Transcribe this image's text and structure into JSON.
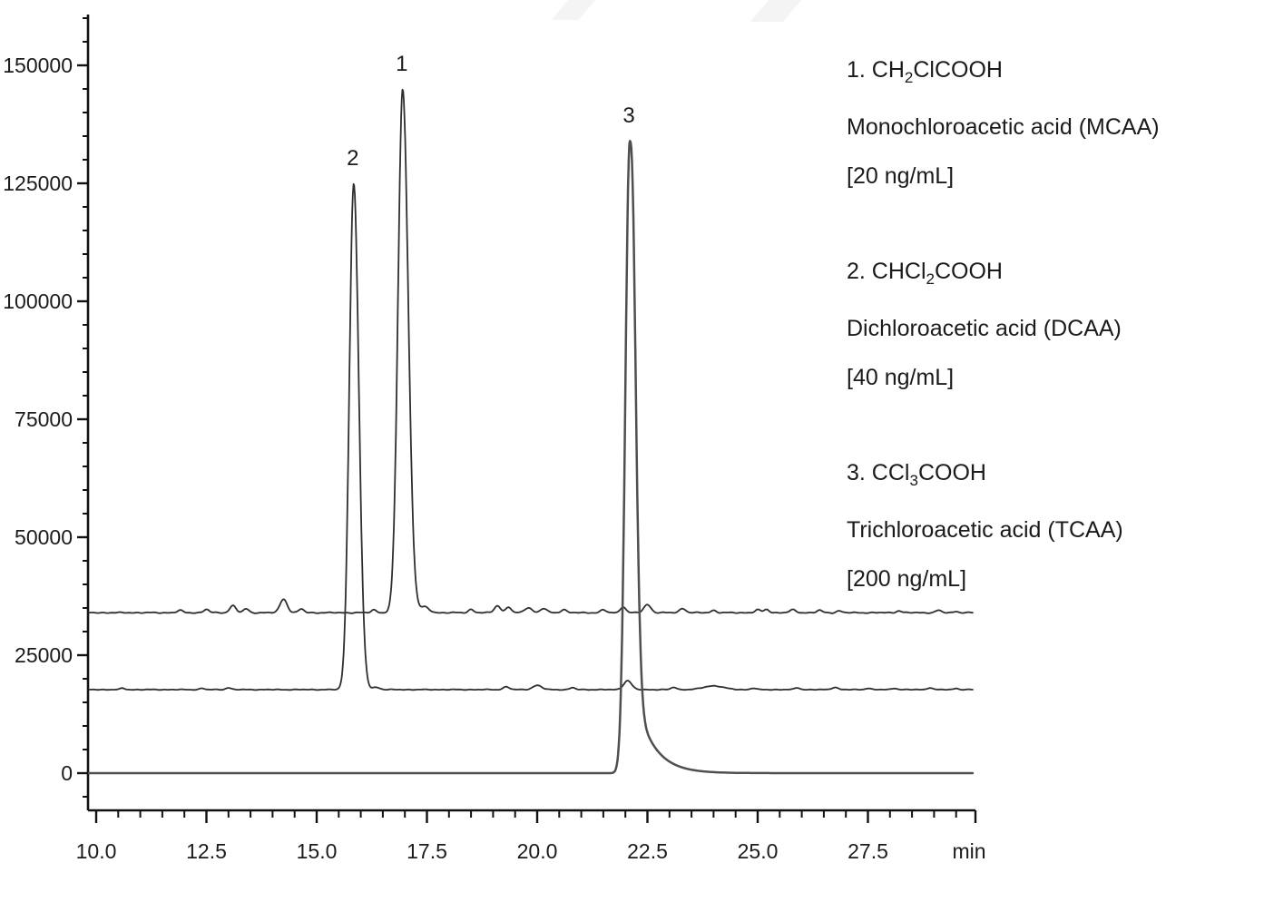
{
  "figure": {
    "background": "#ffffff",
    "watermark_color": "#f4f4f4",
    "axis_color": "#111111",
    "text_color": "#1b1b1b"
  },
  "legend": {
    "items": [
      {
        "formula_pre": "1. CH",
        "formula_sub": "2",
        "formula_post": "ClCOOH",
        "name": "Monochloroacetic acid (MCAA)",
        "concentration": "[20 ng/mL]"
      },
      {
        "formula_pre": "2. CHCl",
        "formula_sub": "2",
        "formula_post": "COOH",
        "name": "Dichloroacetic acid (DCAA)",
        "concentration": "[40 ng/mL]"
      },
      {
        "formula_pre": "3. CCl",
        "formula_sub": "3",
        "formula_post": "COOH",
        "name": "Trichloroacetic acid (TCAA)",
        "concentration": "[200 ng/mL]"
      }
    ]
  },
  "chart_data": {
    "type": "line",
    "title": "",
    "xlabel": "min",
    "ylabel": "",
    "grid": false,
    "legend_position": "right-outside",
    "x_axis": {
      "min": 10.0,
      "max": 29.9,
      "major_tick_interval": 2.5,
      "minor_tick_interval": 0.5,
      "major_ticks": [
        10.0,
        12.5,
        15.0,
        17.5,
        20.0,
        22.5,
        25.0,
        27.5
      ],
      "tick_labels": [
        "10.0",
        "12.5",
        "15.0",
        "17.5",
        "20.0",
        "22.5",
        "25.0",
        "27.5"
      ],
      "unit_label": "min"
    },
    "y_axis": {
      "min": 0,
      "max": 160000,
      "major_tick_interval": 25000,
      "minor_tick_interval": 5000,
      "major_ticks": [
        0,
        25000,
        50000,
        75000,
        100000,
        125000,
        150000
      ],
      "tick_labels": [
        "0",
        "25000",
        "50000",
        "75000",
        "100000",
        "125000",
        "150000"
      ]
    },
    "series": [
      {
        "id": "mcaa",
        "peak_label": "1",
        "analyte": "Monochloroacetic acid (MCAA)",
        "formula": "CH2ClCOOH",
        "concentration": "20 ng/mL",
        "baseline_offset_counts": 34000,
        "retention_time_min": 16.95,
        "apex_counts": 145000,
        "peak_height_counts": 111000,
        "sigma_left_min": 0.105,
        "sigma_right_min": 0.125,
        "tail_height_counts": 0,
        "tail_tau_min": 0,
        "line_color": "#2f2f2f",
        "line_width": 1.8,
        "jitter_counts": 130,
        "noise_bumps": [
          [
            11.9,
            500,
            0.06
          ],
          [
            12.5,
            700,
            0.06
          ],
          [
            13.1,
            1500,
            0.07
          ],
          [
            13.4,
            800,
            0.06
          ],
          [
            14.25,
            2900,
            0.08
          ],
          [
            14.65,
            800,
            0.06
          ],
          [
            16.3,
            600,
            0.06
          ],
          [
            17.45,
            1200,
            0.1
          ],
          [
            18.5,
            700,
            0.06
          ],
          [
            19.1,
            1500,
            0.07
          ],
          [
            19.35,
            1200,
            0.06
          ],
          [
            19.8,
            1100,
            0.08
          ],
          [
            20.15,
            900,
            0.07
          ],
          [
            20.6,
            700,
            0.06
          ],
          [
            21.5,
            600,
            0.06
          ],
          [
            21.95,
            1300,
            0.06
          ],
          [
            22.5,
            1700,
            0.08
          ],
          [
            23.3,
            900,
            0.07
          ],
          [
            24.0,
            500,
            0.06
          ],
          [
            25.0,
            600,
            0.06
          ],
          [
            25.2,
            700,
            0.06
          ],
          [
            25.8,
            600,
            0.07
          ],
          [
            26.4,
            500,
            0.06
          ],
          [
            26.85,
            400,
            0.06
          ],
          [
            28.2,
            400,
            0.06
          ],
          [
            29.1,
            500,
            0.06
          ],
          [
            29.5,
            300,
            0.05
          ]
        ]
      },
      {
        "id": "dcaa",
        "peak_label": "2",
        "analyte": "Dichloroacetic acid (DCAA)",
        "formula": "CHCl2COOH",
        "concentration": "40 ng/mL",
        "baseline_offset_counts": 17700,
        "retention_time_min": 15.84,
        "apex_counts": 125000,
        "peak_height_counts": 107300,
        "sigma_left_min": 0.1,
        "sigma_right_min": 0.115,
        "tail_height_counts": 0,
        "tail_tau_min": 0,
        "line_color": "#2f2f2f",
        "line_width": 1.8,
        "jitter_counts": 90,
        "noise_bumps": [
          [
            10.6,
            300,
            0.05
          ],
          [
            12.4,
            300,
            0.05
          ],
          [
            13.0,
            400,
            0.06
          ],
          [
            16.35,
            500,
            0.08
          ],
          [
            19.3,
            600,
            0.07
          ],
          [
            20.0,
            900,
            0.1
          ],
          [
            20.8,
            400,
            0.06
          ],
          [
            22.05,
            1900,
            0.09
          ],
          [
            23.1,
            500,
            0.06
          ],
          [
            24.0,
            800,
            0.22
          ],
          [
            24.9,
            300,
            0.06
          ],
          [
            25.9,
            400,
            0.06
          ],
          [
            26.75,
            500,
            0.07
          ],
          [
            27.5,
            300,
            0.06
          ],
          [
            28.1,
            300,
            0.06
          ],
          [
            28.9,
            400,
            0.06
          ],
          [
            29.5,
            300,
            0.05
          ]
        ]
      },
      {
        "id": "tcaa",
        "peak_label": "3",
        "analyte": "Trichloroacetic acid (TCAA)",
        "formula": "CCl3COOH",
        "concentration": "200 ng/mL",
        "baseline_offset_counts": 0,
        "retention_time_min": 22.1,
        "apex_counts": 134000,
        "peak_height_counts": 134000,
        "sigma_left_min": 0.1,
        "sigma_right_min": 0.115,
        "tail_height_counts": 22000,
        "tail_tau_min": 0.41,
        "line_color": "#4f4f4f",
        "line_width": 2.5,
        "jitter_counts": 0,
        "noise_bumps": []
      }
    ]
  }
}
